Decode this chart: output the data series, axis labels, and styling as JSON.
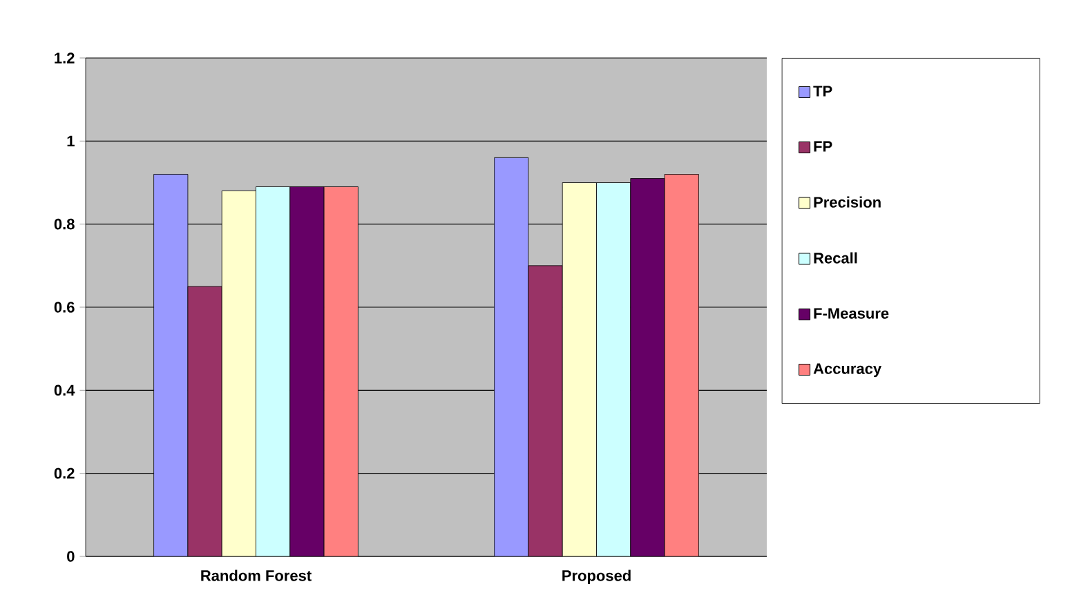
{
  "chart_data": {
    "type": "bar",
    "categories": [
      "Random Forest",
      "Proposed"
    ],
    "series": [
      {
        "name": "TP",
        "color": "#9999ff",
        "values": [
          0.92,
          0.96
        ]
      },
      {
        "name": "FP",
        "color": "#993366",
        "values": [
          0.65,
          0.7
        ]
      },
      {
        "name": "Precision",
        "color": "#ffffcc",
        "values": [
          0.88,
          0.9
        ]
      },
      {
        "name": "Recall",
        "color": "#ccffff",
        "values": [
          0.89,
          0.9
        ]
      },
      {
        "name": "F-Measure",
        "color": "#660066",
        "values": [
          0.89,
          0.91
        ]
      },
      {
        "name": "Accuracy",
        "color": "#ff8080",
        "values": [
          0.89,
          0.92
        ]
      }
    ],
    "ylim": [
      0,
      1.2
    ],
    "yticks": [
      0,
      0.2,
      0.4,
      0.6,
      0.8,
      1,
      1.2
    ],
    "grid": "y",
    "legend": "right"
  }
}
